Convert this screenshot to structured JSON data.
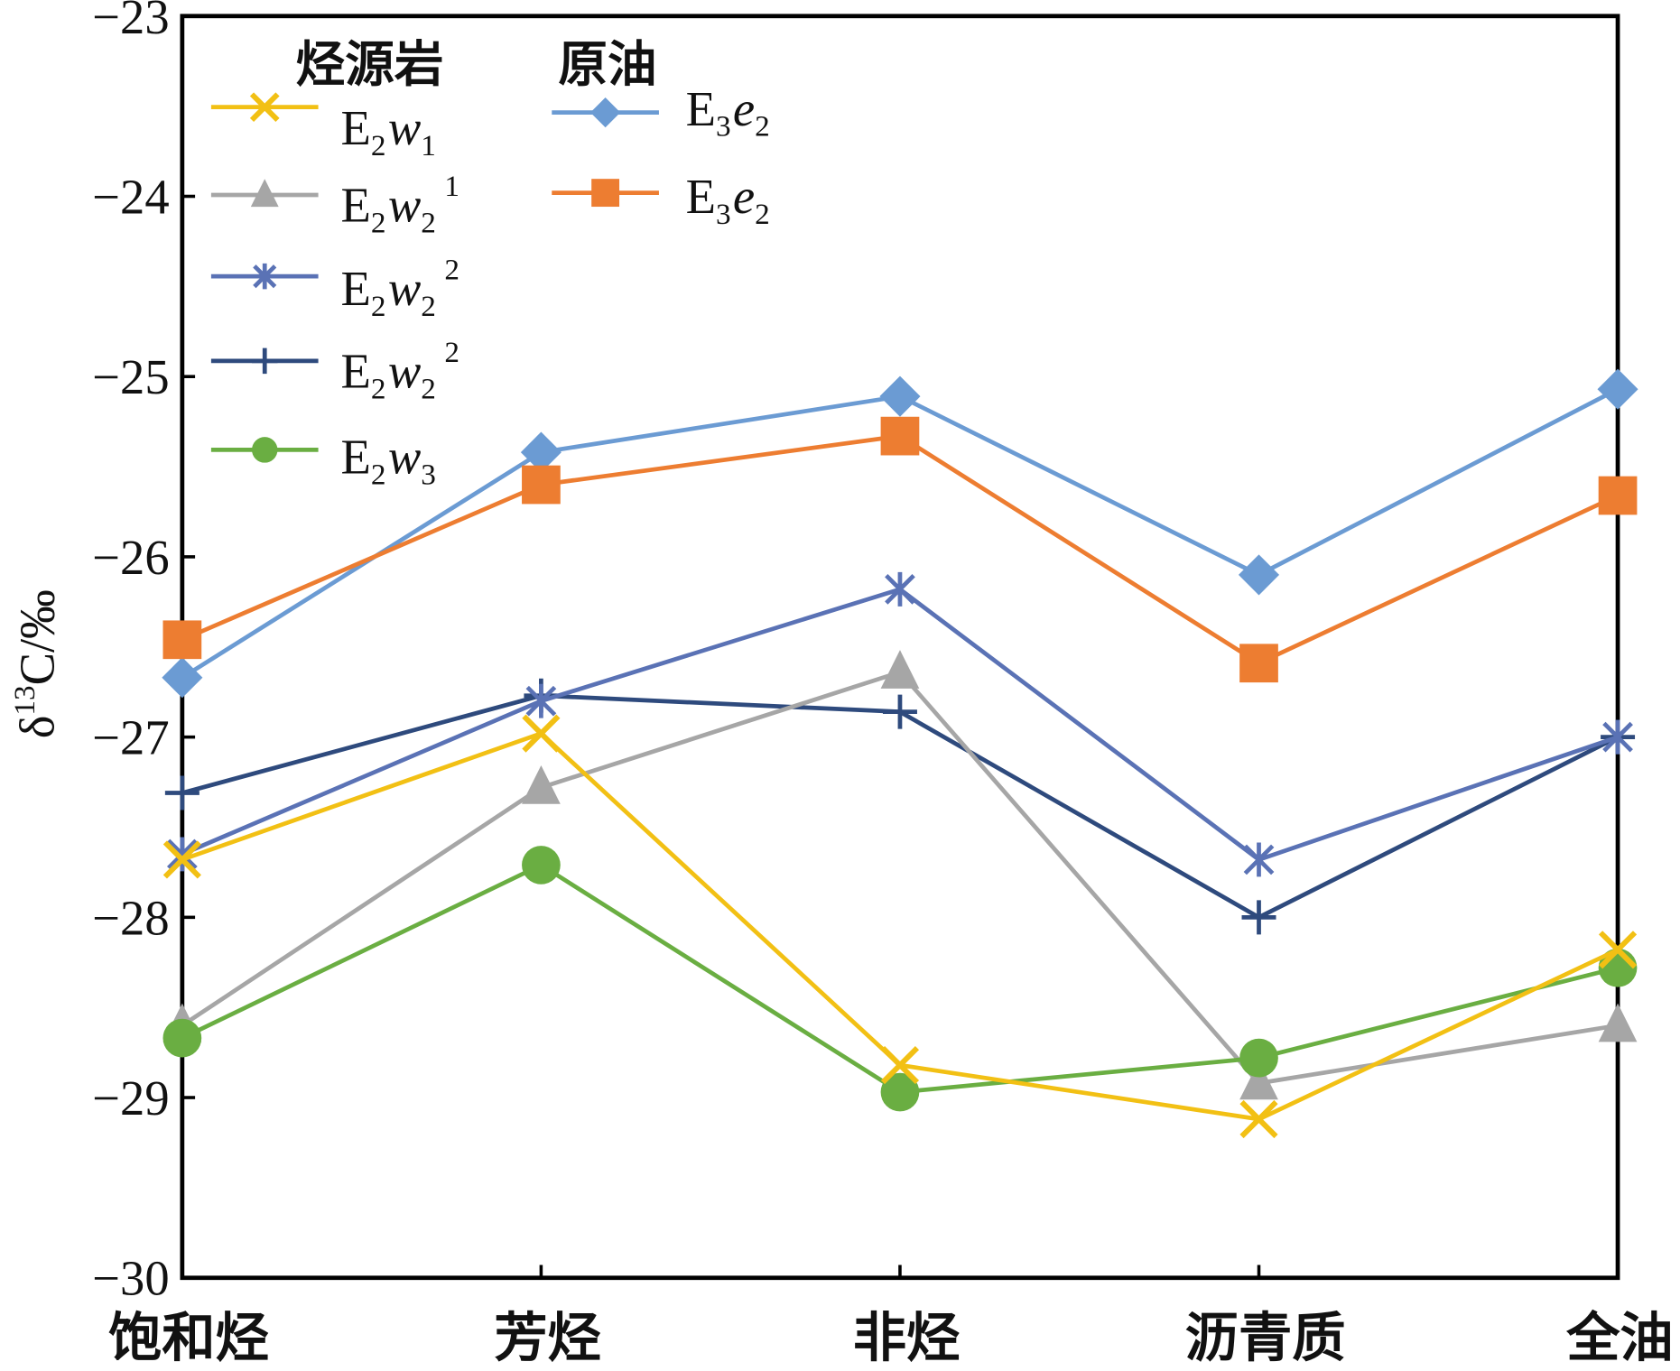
{
  "chart_data": {
    "type": "line",
    "categories": [
      "饱和烃",
      "芳烃",
      "非烃",
      "沥青质",
      "全油"
    ],
    "ylim": [
      -30,
      -23
    ],
    "y_ticks": [
      -23,
      -24,
      -25,
      -26,
      -27,
      -28,
      -29,
      -30
    ],
    "y_tick_labels": [
      "−23",
      "−24",
      "−25",
      "−26",
      "−27",
      "−28",
      "−29",
      "−30"
    ],
    "ylabel": {
      "symbol": "δ",
      "sup": "13",
      "rest": "C/‰"
    },
    "grid": false,
    "legend": {
      "placement": "top-left",
      "groups": [
        {
          "title": "烃源岩",
          "series_index": [
            0,
            1,
            2,
            3,
            4
          ]
        },
        {
          "title": "原油",
          "series_index": [
            5,
            6
          ]
        }
      ]
    },
    "series": [
      {
        "label": {
          "base": "E",
          "base_sub": "2",
          "var": "w",
          "var_sub": "1",
          "sup": ""
        },
        "color": "#F2C014",
        "marker": "x",
        "values": [
          -27.68,
          -26.98,
          -28.82,
          -29.12,
          -28.18
        ]
      },
      {
        "label": {
          "base": "E",
          "base_sub": "2",
          "var": "w",
          "var_sub": "2",
          "sup": "1"
        },
        "color": "#A6A6A6",
        "marker": "triangle",
        "values": [
          -28.6,
          -27.28,
          -26.64,
          -28.92,
          -28.6
        ]
      },
      {
        "label": {
          "base": "E",
          "base_sub": "2",
          "var": "w",
          "var_sub": "2",
          "sup": "2"
        },
        "color": "#5A72B5",
        "marker": "asterisk",
        "values": [
          -27.65,
          -26.8,
          -26.18,
          -27.68,
          -27.0
        ]
      },
      {
        "label": {
          "base": "E",
          "base_sub": "2",
          "var": "w",
          "var_sub": "2",
          "sup": "2"
        },
        "color": "#2E4A7D",
        "marker": "plus",
        "values": [
          -27.31,
          -26.77,
          -26.86,
          -28.0,
          -27.0
        ]
      },
      {
        "label": {
          "base": "E",
          "base_sub": "2",
          "var": "w",
          "var_sub": "3",
          "sup": ""
        },
        "color": "#6AAE42",
        "marker": "circle",
        "values": [
          -28.67,
          -27.71,
          -28.97,
          -28.78,
          -28.28
        ]
      },
      {
        "label": {
          "base": "E",
          "base_sub": "3",
          "var": "e",
          "var_sub": "2",
          "sup": ""
        },
        "color": "#6B9BD3",
        "marker": "diamond",
        "values": [
          -26.67,
          -25.42,
          -25.11,
          -26.1,
          -25.07
        ]
      },
      {
        "label": {
          "base": "E",
          "base_sub": "3",
          "var": "e",
          "var_sub": "2",
          "sup": ""
        },
        "color": "#ED7D31",
        "marker": "square",
        "values": [
          -26.46,
          -25.6,
          -25.33,
          -26.59,
          -25.66
        ]
      }
    ]
  }
}
